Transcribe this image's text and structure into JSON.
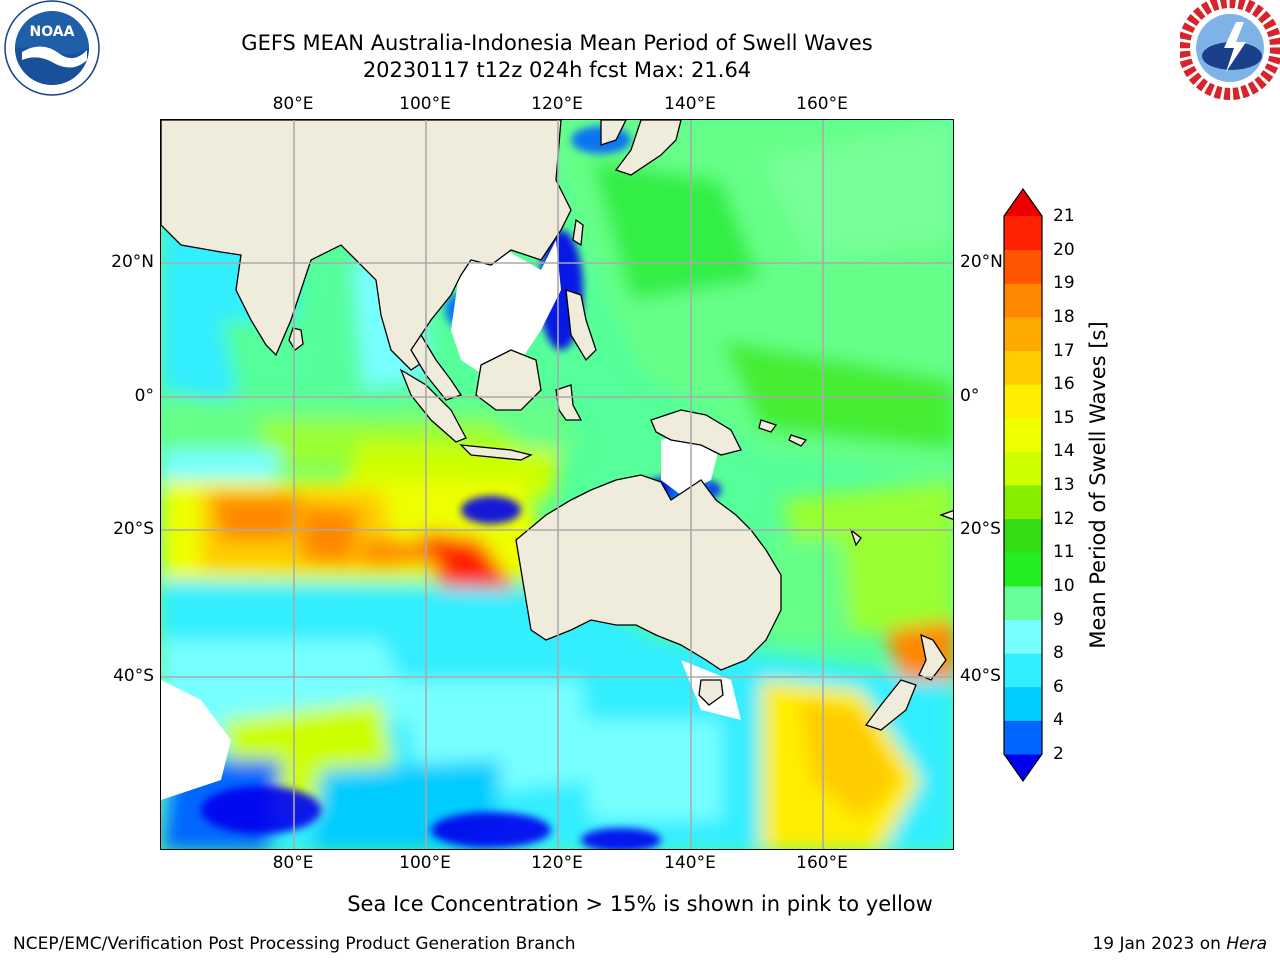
{
  "logos": {
    "noaa": {
      "label": "NOAA",
      "ring_text": "NATIONAL OCEANIC AND ATMOSPHERIC ADMINISTRATION · U.S. DEPARTMENT OF COMMERCE"
    },
    "nws": {
      "ring_text": "NATIONAL WEATHER SERVICE"
    }
  },
  "title": {
    "line1": "GEFS MEAN Australia-Indonesia Mean Period of Swell Waves",
    "line2": "20230117 t12z 024h fcst   Max: 21.64"
  },
  "map": {
    "lon_labels": [
      "80°E",
      "100°E",
      "120°E",
      "140°E",
      "160°E"
    ],
    "lat_labels": [
      "20°N",
      "0°",
      "20°S",
      "40°S"
    ],
    "colors": {
      "land": "#efecdc",
      "ocean_default": "#55ff99",
      "gridline": "#aaaaaa",
      "no_data": "#ffffff"
    }
  },
  "colorbar": {
    "title": "Mean Period of Swell Waves [s]",
    "ticks": [
      "2",
      "4",
      "6",
      "8",
      "9",
      "10",
      "11",
      "12",
      "13",
      "14",
      "15",
      "16",
      "17",
      "18",
      "19",
      "20",
      "21"
    ],
    "colors": [
      "#0000ee",
      "#0066ff",
      "#00ccff",
      "#33eeff",
      "#77ffff",
      "#66ff99",
      "#22ee22",
      "#33dd11",
      "#88ee00",
      "#ccff00",
      "#eeff00",
      "#ffee00",
      "#ffcc00",
      "#ffaa00",
      "#ff8800",
      "#ff5500",
      "#ff2200",
      "#ee0000"
    ]
  },
  "note": "Sea Ice Concentration > 15% is shown in pink to yellow",
  "footer": {
    "left": "NCEP/EMC/Verification Post Processing Product Generation Branch",
    "right_prefix": "19 Jan 2023 on ",
    "right_host": "Hera"
  }
}
